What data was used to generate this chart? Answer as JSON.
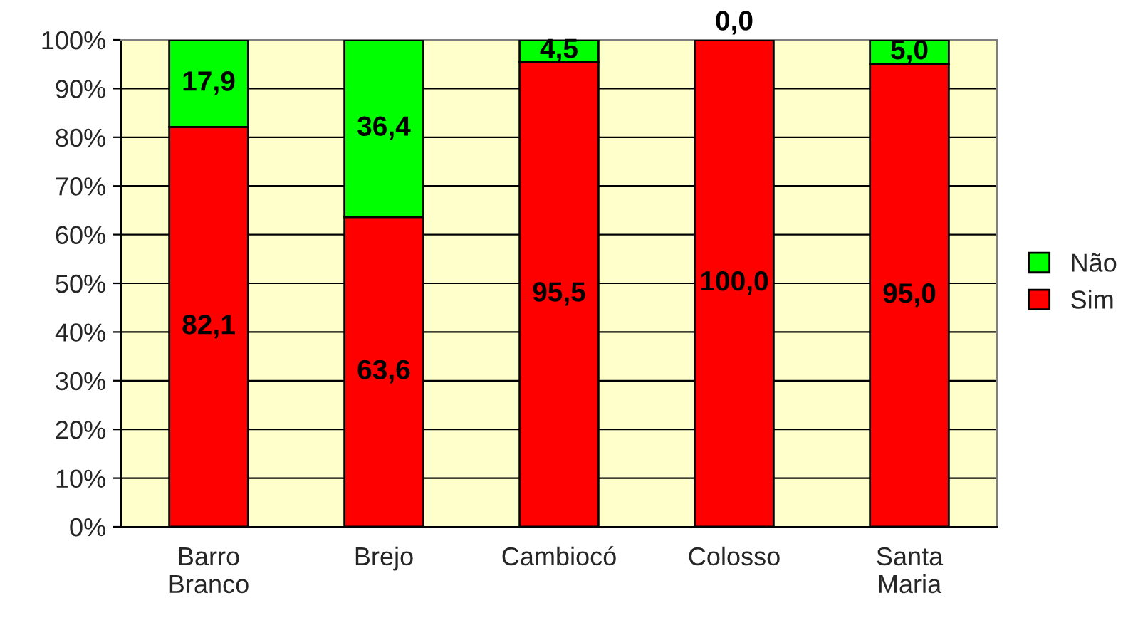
{
  "chart_data": {
    "type": "bar",
    "stacked": true,
    "categories": [
      "Barro Branco",
      "Brejo",
      "Cambiocó",
      "Colosso",
      "Santa Maria"
    ],
    "series": [
      {
        "name": "Sim",
        "color": "#ff0000",
        "values": [
          82.1,
          63.6,
          95.5,
          100.0,
          95.0
        ],
        "value_labels": [
          "82,1",
          "63,6",
          "95,5",
          "100,0",
          "95,0"
        ]
      },
      {
        "name": "Não",
        "color": "#00ff00",
        "values": [
          17.9,
          36.4,
          4.5,
          0.0,
          5.0
        ],
        "value_labels": [
          "17,9",
          "36,4",
          "4,5",
          "0,0",
          "5,0"
        ]
      }
    ],
    "ylim": [
      0,
      100
    ],
    "yticks": [
      {
        "value": 0,
        "label": "0%"
      },
      {
        "value": 10,
        "label": "10%"
      },
      {
        "value": 20,
        "label": "20%"
      },
      {
        "value": 30,
        "label": "30%"
      },
      {
        "value": 40,
        "label": "40%"
      },
      {
        "value": 50,
        "label": "50%"
      },
      {
        "value": 60,
        "label": "60%"
      },
      {
        "value": 70,
        "label": "70%"
      },
      {
        "value": 80,
        "label": "80%"
      },
      {
        "value": 90,
        "label": "90%"
      },
      {
        "value": 100,
        "label": "100%"
      }
    ],
    "grid": "y",
    "legend": "right"
  }
}
